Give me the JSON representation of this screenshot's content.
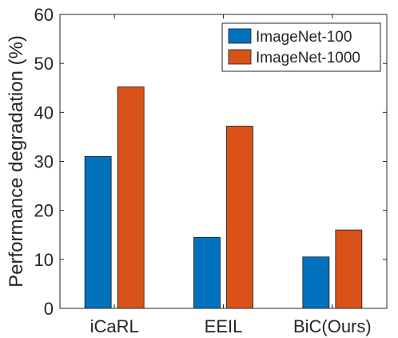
{
  "chart_data": {
    "type": "bar",
    "title": "",
    "xlabel": "",
    "ylabel": "Performance degradation (%)",
    "categories": [
      "iCaRL",
      "EEIL",
      "BiC(Ours)"
    ],
    "series": [
      {
        "name": "ImageNet-100",
        "color": "#0072BD",
        "values": [
          31.0,
          14.5,
          10.5
        ]
      },
      {
        "name": "ImageNet-1000",
        "color": "#D95319",
        "values": [
          45.2,
          37.2,
          16.0
        ]
      }
    ],
    "ylim": [
      0,
      60
    ],
    "yticks": [
      0,
      10,
      20,
      30,
      40,
      50,
      60
    ],
    "grid": false,
    "legend_position": "top-right"
  }
}
